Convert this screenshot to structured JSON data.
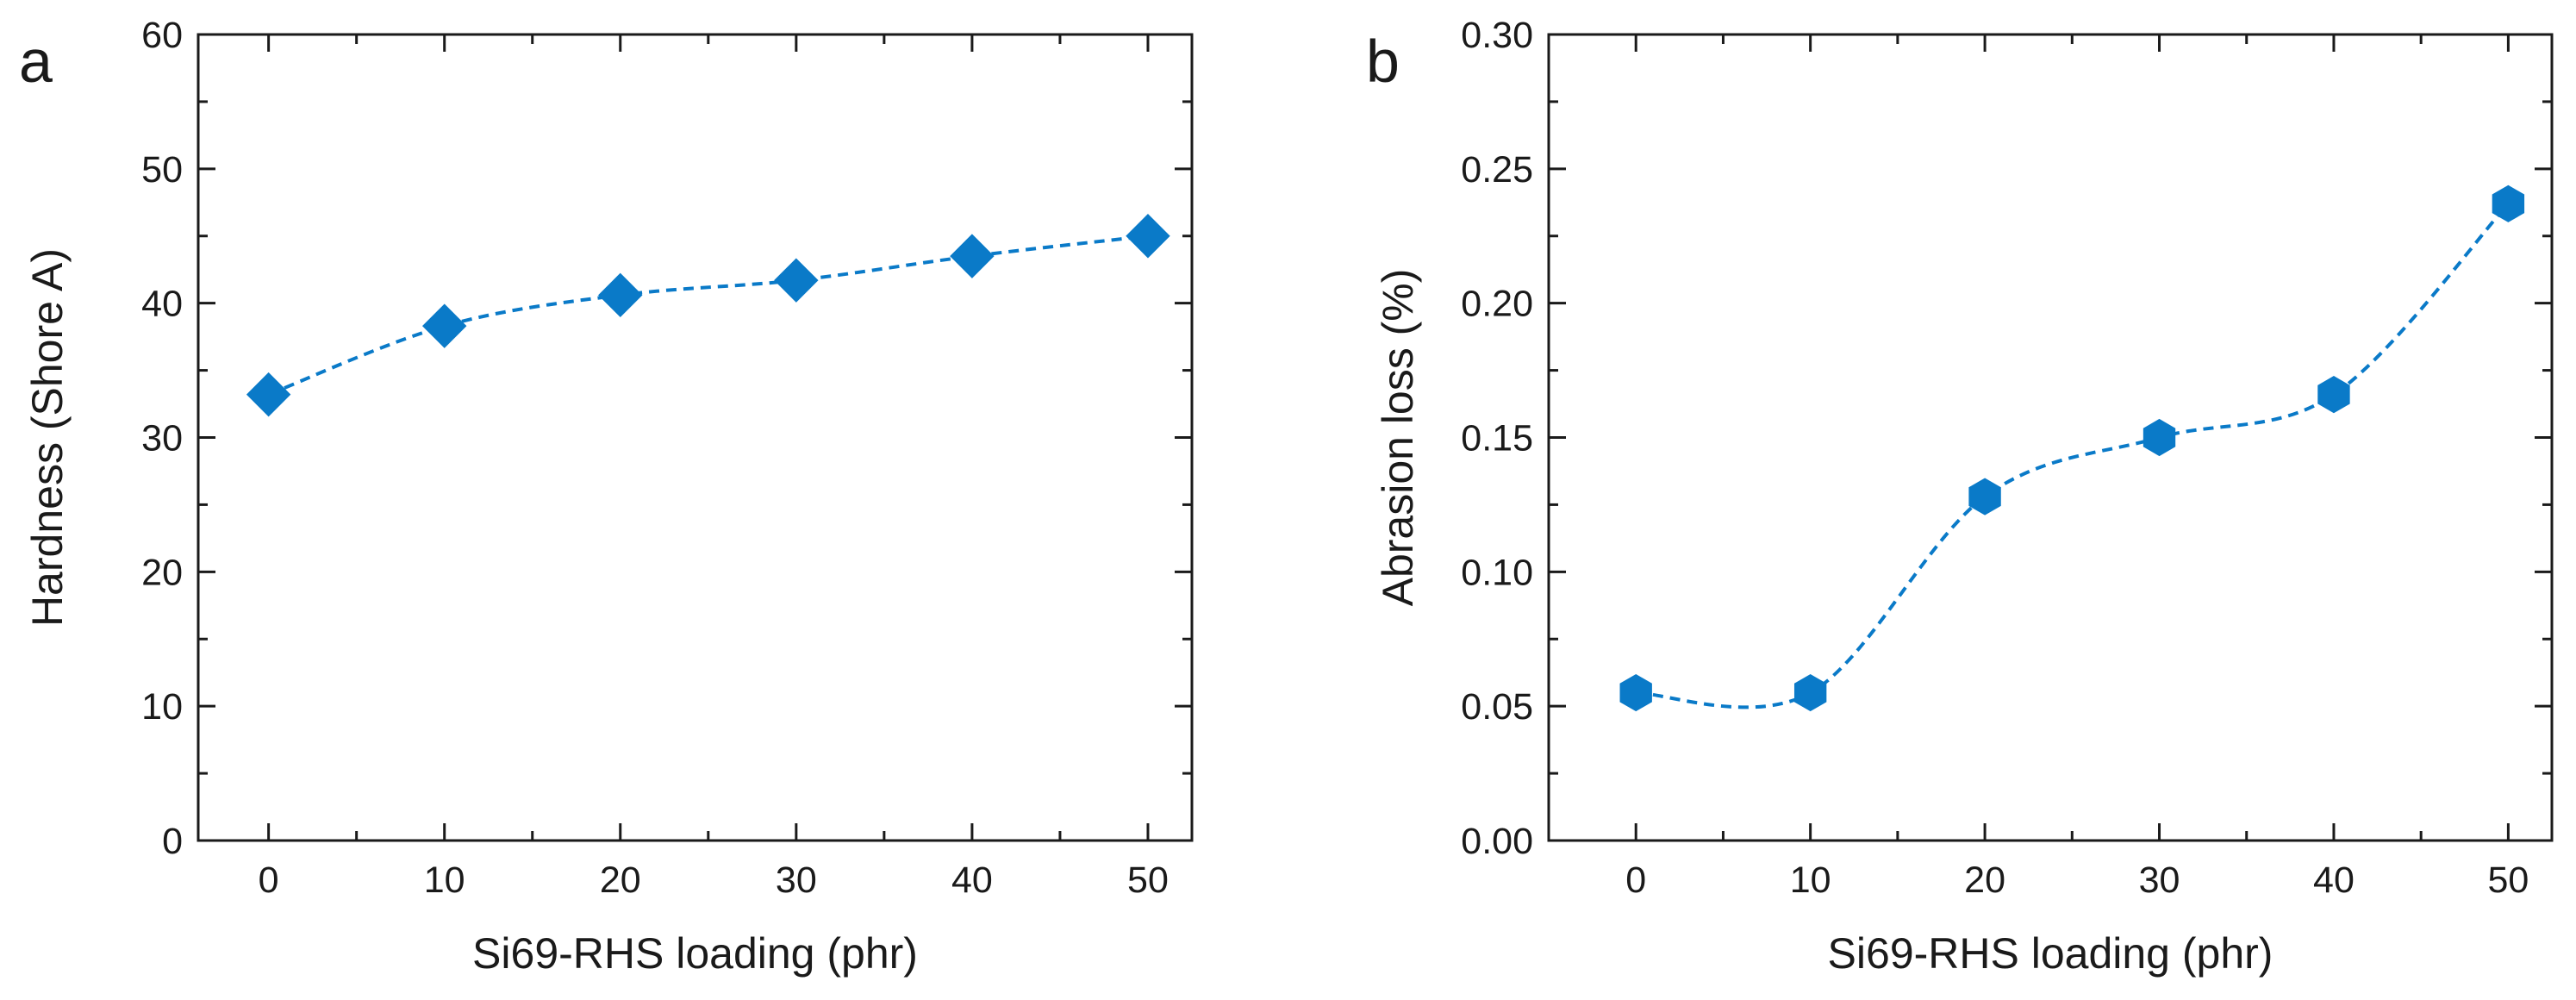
{
  "colors": {
    "series": "#0a7ac8",
    "axes": "#1a1a1a",
    "background": "#ffffff"
  },
  "chart_data": [
    {
      "panel": "a",
      "type": "line",
      "line_style": "dashed smooth curve",
      "marker": "diamond",
      "xlabel": "Si69-RHS loading (phr)",
      "ylabel": "Hardness (Shore A)",
      "xlim": [
        -4,
        52.5
      ],
      "ylim": [
        0,
        60
      ],
      "xticks": [
        0,
        10,
        20,
        30,
        40,
        50
      ],
      "xtick_labels": [
        "0",
        "10",
        "20",
        "30",
        "40",
        "50"
      ],
      "yticks": [
        0,
        10,
        20,
        30,
        40,
        50,
        60
      ],
      "ytick_labels": [
        "0",
        "10",
        "20",
        "30",
        "40",
        "50",
        "60"
      ],
      "grid": false,
      "series": [
        {
          "x": [
            0,
            10,
            20,
            30,
            40,
            50
          ],
          "y": [
            33.2,
            38.3,
            40.6,
            41.7,
            43.5,
            45.0
          ]
        }
      ]
    },
    {
      "panel": "b",
      "type": "line",
      "line_style": "dashed smooth curve",
      "marker": "hexagon",
      "xlabel": "Si69-RHS loading (phr)",
      "ylabel": "Abrasion loss (%)",
      "xlim": [
        -5,
        52.5
      ],
      "ylim": [
        0,
        0.3
      ],
      "xticks": [
        0,
        10,
        20,
        30,
        40,
        50
      ],
      "xtick_labels": [
        "0",
        "10",
        "20",
        "30",
        "40",
        "50"
      ],
      "yticks": [
        0,
        0.05,
        0.1,
        0.15,
        0.2,
        0.25,
        0.3
      ],
      "ytick_labels": [
        "0.00",
        "0.05",
        "0.10",
        "0.15",
        "0.20",
        "0.25",
        "0.30"
      ],
      "grid": false,
      "series": [
        {
          "x": [
            0,
            10,
            20,
            30,
            40,
            50
          ],
          "y": [
            0.055,
            0.055,
            0.128,
            0.15,
            0.166,
            0.237
          ]
        }
      ]
    }
  ]
}
